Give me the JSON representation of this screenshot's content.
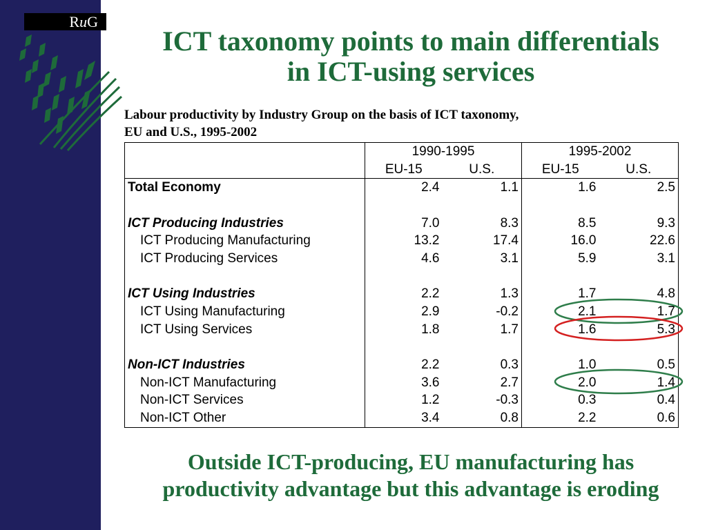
{
  "logo": {
    "prefix": "R",
    "italic": "u",
    "suffix": "G"
  },
  "title": {
    "line1": "ICT taxonomy points to main differentials",
    "line2": "in ICT-using services"
  },
  "caption": {
    "line1": "Labour productivity by Industry Group on the basis of ICT taxonomy,",
    "line2": "EU and U.S.,  1995-2002"
  },
  "table": {
    "periods": [
      "1990-1995",
      "1995-2002"
    ],
    "subheads": [
      "EU-15",
      "U.S.",
      "EU-15",
      "U.S."
    ],
    "rows": [
      {
        "label": "Total Economy",
        "v": [
          "2.4",
          "1.1",
          "1.6",
          "2.5"
        ]
      },
      {
        "label": "ICT Producing Industries",
        "v": [
          "7.0",
          "8.3",
          "8.5",
          "9.3"
        ]
      },
      {
        "label": "ICT Producing Manufacturing",
        "v": [
          "13.2",
          "17.4",
          "16.0",
          "22.6"
        ]
      },
      {
        "label": "ICT Producing Services",
        "v": [
          "4.6",
          "3.1",
          "5.9",
          "3.1"
        ]
      },
      {
        "label": "ICT Using Industries",
        "v": [
          "2.2",
          "1.3",
          "1.7",
          "4.8"
        ]
      },
      {
        "label": "ICT Using Manufacturing",
        "v": [
          "2.9",
          "-0.2",
          "2.1",
          "1.7"
        ]
      },
      {
        "label": "ICT Using Services",
        "v": [
          "1.8",
          "1.7",
          "1.6",
          "5.3"
        ]
      },
      {
        "label": "Non-ICT Industries",
        "v": [
          "2.2",
          "0.3",
          "1.0",
          "0.5"
        ]
      },
      {
        "label": "Non-ICT Manufacturing",
        "v": [
          "3.6",
          "2.7",
          "2.0",
          "1.4"
        ]
      },
      {
        "label": "Non-ICT Services",
        "v": [
          "1.2",
          "-0.3",
          "0.3",
          "0.4"
        ]
      },
      {
        "label": "Non-ICT Other",
        "v": [
          "3.4",
          "0.8",
          "2.2",
          "0.6"
        ]
      }
    ]
  },
  "highlights": {
    "green": "#2e7d4a",
    "red": "#d42020"
  },
  "footer": {
    "line1": "Outside ICT-producing, EU manufacturing has",
    "line2": "productivity advantage but this advantage is eroding"
  },
  "colors": {
    "sidebar": "#1f1f5e",
    "title": "#1e6b3a",
    "emblem": "#1e6b3a"
  }
}
